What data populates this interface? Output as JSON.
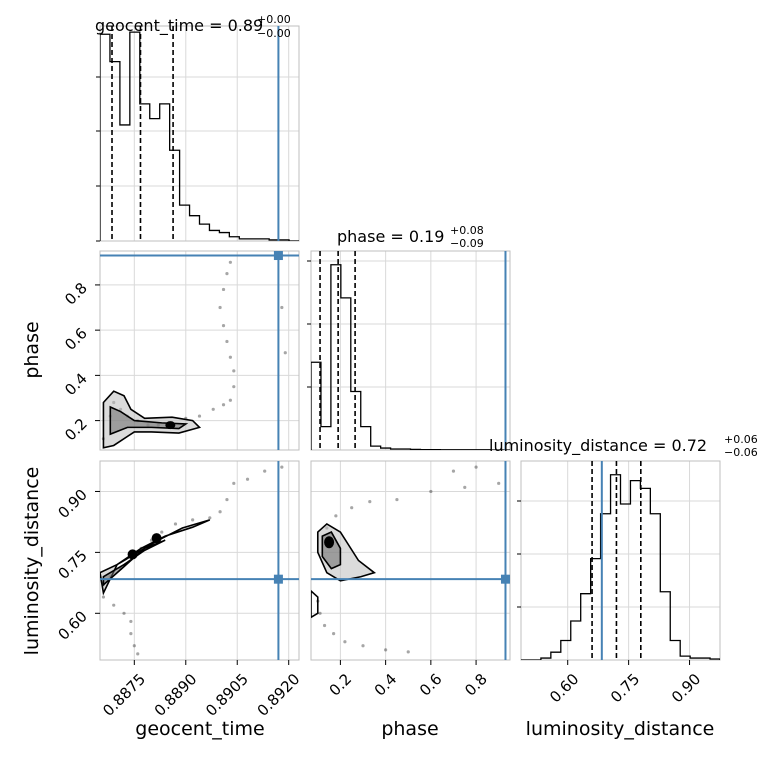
{
  "chart_data": {
    "type": "corner",
    "parameters": [
      "geocent_time",
      "phase",
      "luminosity_distance"
    ],
    "ranges": {
      "geocent_time": [
        0.8865,
        0.8923
      ],
      "phase": [
        0.07,
        0.95
      ],
      "luminosity_distance": [
        0.485,
        0.975
      ]
    },
    "injection": {
      "geocent_time": 0.8917,
      "phase": 0.93,
      "luminosity_distance": 0.684
    },
    "titles": [
      {
        "name": "geocent_time",
        "median": "0.89",
        "plus": "+0.00",
        "minus": "−0.00"
      },
      {
        "name": "phase",
        "median": "0.19",
        "plus": "+0.08",
        "minus": "−0.09"
      },
      {
        "name": "luminosity_distance",
        "median": "0.72",
        "plus": "+0.06",
        "minus": "−0.06"
      }
    ],
    "quantiles": {
      "geocent_time": [
        0.88685,
        0.88768,
        0.88863
      ],
      "phase": [
        0.11,
        0.19,
        0.265
      ],
      "luminosity_distance": [
        0.66,
        0.72,
        0.78
      ]
    },
    "x_ticks": {
      "geocent_time": [
        "0.8875",
        "0.8890",
        "0.8905",
        "0.8920"
      ],
      "phase": [
        "0.2",
        "0.4",
        "0.6",
        "0.8"
      ],
      "luminosity_distance": [
        "0.60",
        "0.75",
        "0.90"
      ]
    },
    "y_ticks": {
      "phase": [
        "0.2",
        "0.4",
        "0.6",
        "0.8"
      ],
      "luminosity_distance": [
        "0.60",
        "0.75",
        "0.90"
      ]
    },
    "hist_geocent_time": {
      "edges": [
        0.8865,
        0.8923
      ],
      "counts": [
        0.98,
        0.85,
        0.55,
        0.99,
        0.65,
        0.58,
        0.65,
        0.43,
        0.17,
        0.12,
        0.08,
        0.05,
        0.04,
        0.02,
        0.01,
        0.01,
        0.01,
        0.005,
        0.005,
        0
      ]
    },
    "hist_phase": {
      "edges": [
        0.07,
        0.95
      ],
      "counts": [
        0.45,
        0.12,
        0.95,
        0.78,
        0.3,
        0.12,
        0.02,
        0.01,
        0.005,
        0.005,
        0.003,
        0.002,
        0.002,
        0.001,
        0.001,
        0.001,
        0.001,
        0.001,
        0,
        0
      ]
    },
    "hist_luminosity_distance": {
      "edges": [
        0.485,
        0.975
      ],
      "counts": [
        0,
        0,
        0.01,
        0.04,
        0.1,
        0.2,
        0.34,
        0.52,
        0.75,
        0.95,
        0.8,
        0.92,
        0.88,
        0.75,
        0.35,
        0.1,
        0.02,
        0.01,
        0.01,
        0.005
      ]
    },
    "samples_time_phase": [
      [
        0.8866,
        0.12
      ],
      [
        0.8868,
        0.22
      ],
      [
        0.8869,
        0.28
      ],
      [
        0.8871,
        0.25
      ],
      [
        0.8873,
        0.22
      ],
      [
        0.8876,
        0.2
      ],
      [
        0.8879,
        0.18
      ],
      [
        0.8882,
        0.18
      ],
      [
        0.8886,
        0.19
      ],
      [
        0.889,
        0.21
      ],
      [
        0.8894,
        0.22
      ],
      [
        0.8898,
        0.25
      ],
      [
        0.8901,
        0.27
      ],
      [
        0.8903,
        0.29
      ],
      [
        0.8904,
        0.35
      ],
      [
        0.8904,
        0.42
      ],
      [
        0.8903,
        0.48
      ],
      [
        0.8902,
        0.55
      ],
      [
        0.8901,
        0.62
      ],
      [
        0.89,
        0.7
      ],
      [
        0.8901,
        0.78
      ],
      [
        0.8902,
        0.85
      ],
      [
        0.8903,
        0.9
      ],
      [
        0.8918,
        0.7
      ],
      [
        0.8919,
        0.5
      ]
    ],
    "samples_time_distance": [
      [
        0.8866,
        0.67
      ],
      [
        0.8868,
        0.69
      ],
      [
        0.8871,
        0.71
      ],
      [
        0.8874,
        0.74
      ],
      [
        0.8877,
        0.76
      ],
      [
        0.888,
        0.78
      ],
      [
        0.8883,
        0.8
      ],
      [
        0.8887,
        0.82
      ],
      [
        0.8892,
        0.83
      ],
      [
        0.8897,
        0.835
      ],
      [
        0.89,
        0.85
      ],
      [
        0.8902,
        0.88
      ],
      [
        0.8904,
        0.92
      ],
      [
        0.8908,
        0.93
      ],
      [
        0.8913,
        0.95
      ],
      [
        0.8918,
        0.96
      ],
      [
        0.8866,
        0.64
      ],
      [
        0.8869,
        0.62
      ],
      [
        0.8872,
        0.6
      ],
      [
        0.8874,
        0.58
      ],
      [
        0.8874,
        0.55
      ],
      [
        0.8875,
        0.52
      ],
      [
        0.8876,
        0.5
      ]
    ],
    "samples_phase_distance": [
      [
        0.1,
        0.63
      ],
      [
        0.11,
        0.6
      ],
      [
        0.13,
        0.57
      ],
      [
        0.17,
        0.55
      ],
      [
        0.22,
        0.53
      ],
      [
        0.3,
        0.52
      ],
      [
        0.4,
        0.51
      ],
      [
        0.5,
        0.505
      ],
      [
        0.14,
        0.81
      ],
      [
        0.18,
        0.84
      ],
      [
        0.25,
        0.86
      ],
      [
        0.33,
        0.875
      ],
      [
        0.45,
        0.88
      ],
      [
        0.6,
        0.9
      ],
      [
        0.75,
        0.91
      ],
      [
        0.9,
        0.92
      ],
      [
        0.7,
        0.95
      ],
      [
        0.8,
        0.96
      ]
    ],
    "grid": true,
    "axis_labels": {
      "geocent_time": "geocent_time",
      "phase": "phase",
      "luminosity_distance": "luminosity_distance"
    },
    "colors": {
      "truth": "#4682b4",
      "hist": "#000000",
      "contour_fill": "#888888"
    }
  }
}
